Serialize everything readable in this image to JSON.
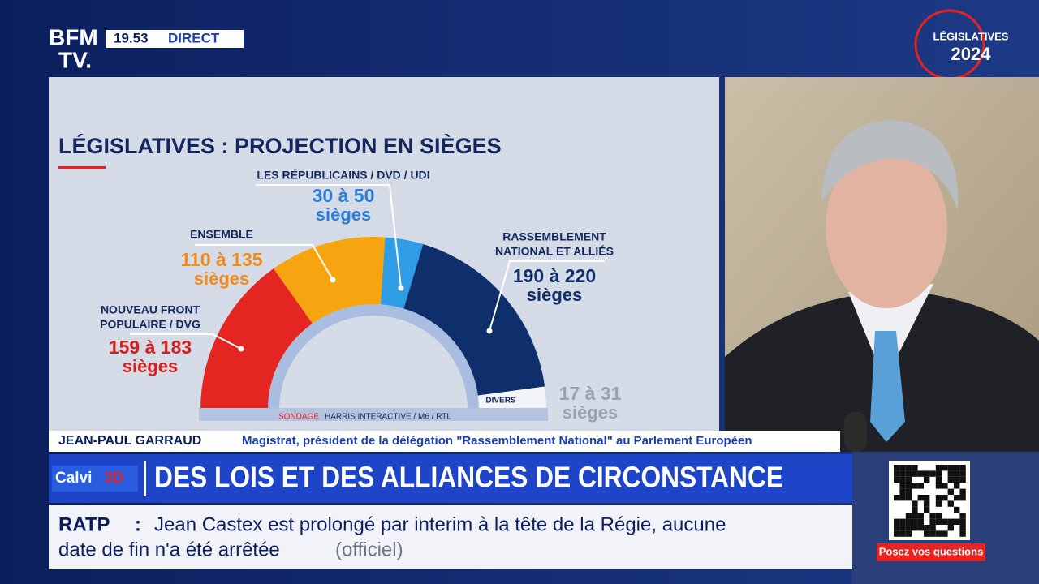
{
  "channel": {
    "logo_line1": "BFM",
    "logo_line2": "TV.",
    "time": "19.53",
    "status": "DIRECT",
    "event": "LÉGISLATIVES",
    "year": "2024"
  },
  "chart_data": {
    "type": "hemicycle",
    "title": "LÉGISLATIVES : PROJECTION EN SIÈGES",
    "unit_label": "sièges",
    "source_prefix": "SONDAGE",
    "source": "HARRIS INTERACTIVE  / M6 / RTL",
    "parties": [
      {
        "name_lines": [
          "NOUVEAU FRONT",
          "POPULAIRE / DVG"
        ],
        "color": "#e42521",
        "label_color": "#d41f1c",
        "low": 159,
        "high": 183,
        "range_label": "159 à 183"
      },
      {
        "name_lines": [
          "ENSEMBLE"
        ],
        "color": "#f6a410",
        "label_color": "#f08a1c",
        "low": 110,
        "high": 135,
        "range_label": "110 à 135"
      },
      {
        "name_lines": [
          "LES RÉPUBLICAINS / DVD / UDI"
        ],
        "color": "#2f9de6",
        "label_color": "#2a7fd9",
        "low": 30,
        "high": 50,
        "range_label": "30 à 50"
      },
      {
        "name_lines": [
          "RASSEMBLEMENT",
          "NATIONAL ET ALLIÉS"
        ],
        "color": "#0e2f6b",
        "label_color": "#0e2f6b",
        "low": 190,
        "high": 220,
        "range_label": "190 à 220"
      },
      {
        "name_lines": [
          "DIVERS"
        ],
        "color": "#f2f4f8",
        "label_color": "#9aa1ab",
        "low": 17,
        "high": 31,
        "range_label": "17 à 31"
      }
    ]
  },
  "lower_third": {
    "name": "JEAN-PAUL GARRAUD",
    "role": "Magistrat, président de la délégation \"Rassemblement National\" au Parlement Européen",
    "show": "Calvi",
    "show_suffix": "3D",
    "headline": "DES LOIS ET DES ALLIANCES DE CIRCONSTANCE"
  },
  "ticker": {
    "source": "RATP",
    "separator": ":",
    "line1": "Jean Castex est prolongé par interim à la tête de la Régie, aucune",
    "line2": "date de fin n'a été arrêtée",
    "attribution": "(officiel)"
  },
  "qr": {
    "caption": "Posez vos questions"
  }
}
